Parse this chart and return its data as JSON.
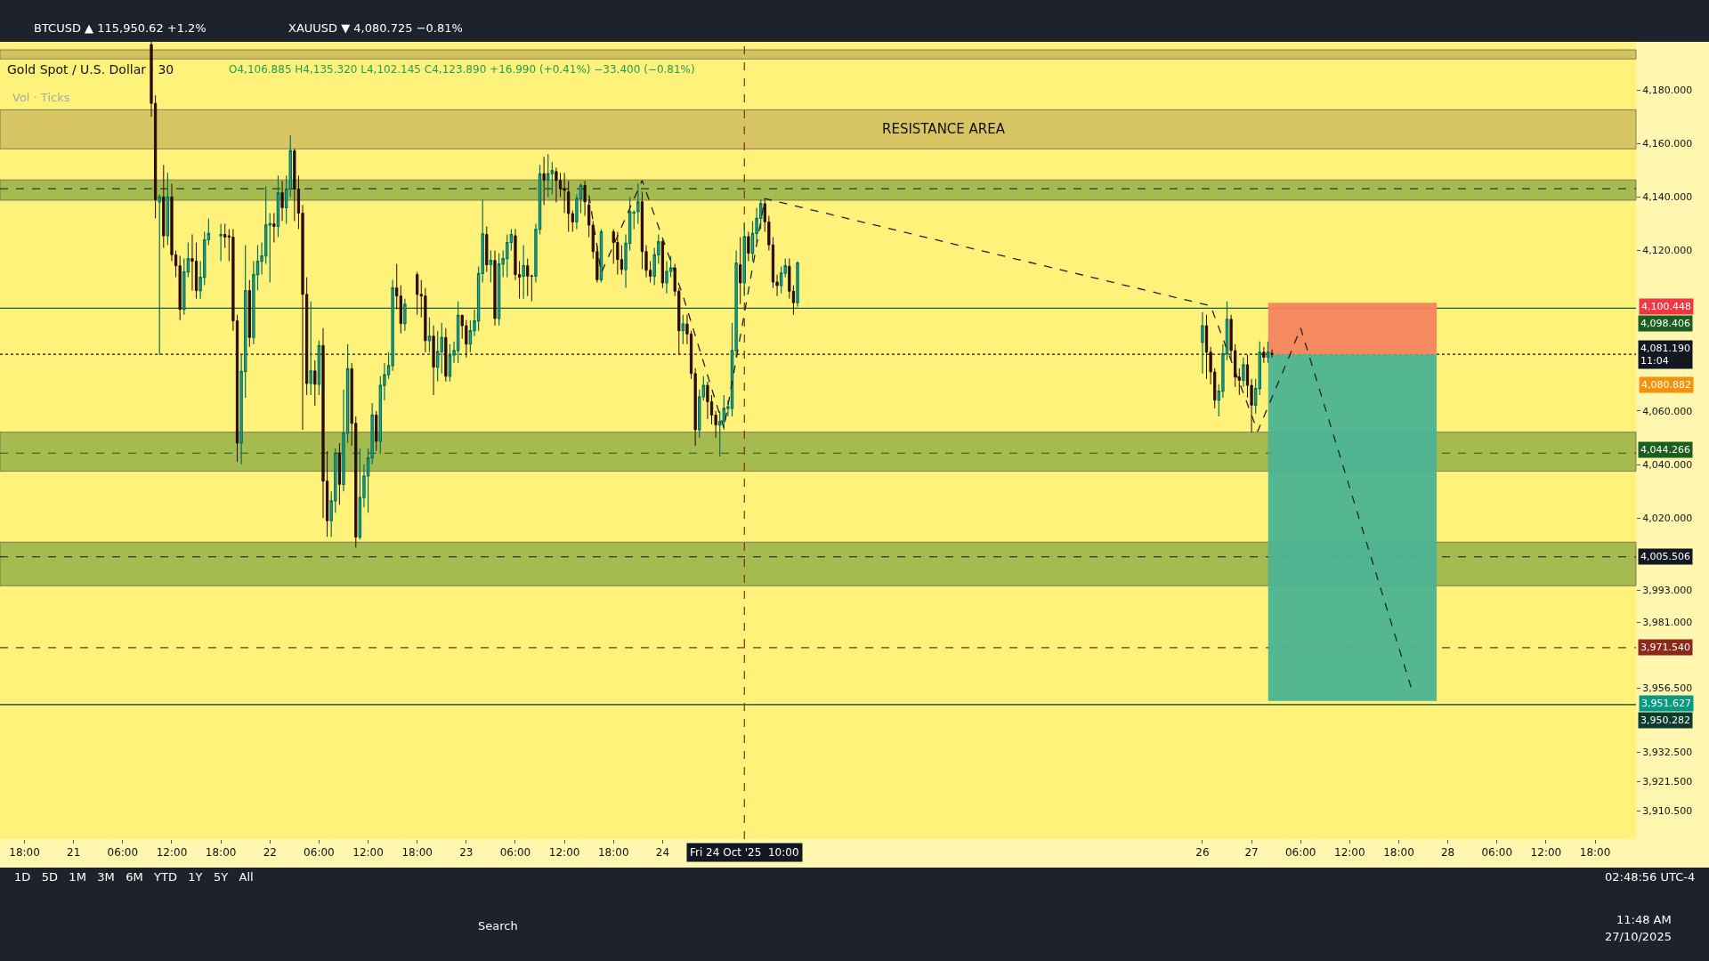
{
  "chart_data": {
    "type": "candlestick",
    "title": "Gold Spot / U.S. Dollar · 30",
    "subtitle": "O4,106.885 H4,135.320 L4,102.145 C4,123.890 +16.990 (+0.41%) −33.400 (−0.81%)",
    "x": [
      "2025-10-21T09:30",
      "2025-10-21T10:00",
      "2025-10-21T10:30",
      "2025-10-21T11:00",
      "2025-10-21T11:30",
      "2025-10-21T12:00",
      "2025-10-21T12:30",
      "2025-10-21T13:00",
      "2025-10-21T13:30",
      "2025-10-21T14:00",
      "2025-10-21T14:30",
      "2025-10-21T15:00",
      "2025-10-21T15:30",
      "2025-10-21T16:00",
      "2025-10-21T16:30",
      "2025-10-21T18:00",
      "2025-10-21T18:30",
      "2025-10-21T19:00",
      "2025-10-21T19:30",
      "2025-10-21T20:00",
      "2025-10-21T20:30",
      "2025-10-21T21:00",
      "2025-10-21T21:30",
      "2025-10-21T22:00",
      "2025-10-21T22:30",
      "2025-10-21T23:00",
      "2025-10-21T23:30",
      "2025-10-22T00:00",
      "2025-10-22T00:30",
      "2025-10-22T01:00",
      "2025-10-22T01:30",
      "2025-10-22T02:00",
      "2025-10-22T02:30",
      "2025-10-22T03:00",
      "2025-10-22T03:30",
      "2025-10-22T04:00",
      "2025-10-22T04:30",
      "2025-10-22T05:00",
      "2025-10-22T05:30",
      "2025-10-22T06:00",
      "2025-10-22T06:30",
      "2025-10-22T07:00",
      "2025-10-22T07:30",
      "2025-10-22T08:00",
      "2025-10-22T08:30",
      "2025-10-22T09:00",
      "2025-10-22T09:30",
      "2025-10-22T10:00",
      "2025-10-22T10:30",
      "2025-10-22T11:00",
      "2025-10-22T11:30",
      "2025-10-22T12:00",
      "2025-10-22T12:30",
      "2025-10-22T13:00",
      "2025-10-22T13:30",
      "2025-10-22T14:00",
      "2025-10-22T14:30",
      "2025-10-22T15:00",
      "2025-10-22T15:30",
      "2025-10-22T16:00",
      "2025-10-22T16:30",
      "2025-10-22T18:00",
      "2025-10-22T18:30",
      "2025-10-22T19:00",
      "2025-10-22T19:30",
      "2025-10-22T20:00",
      "2025-10-22T20:30",
      "2025-10-22T21:00",
      "2025-10-22T21:30",
      "2025-10-22T22:00",
      "2025-10-22T22:30",
      "2025-10-22T23:00",
      "2025-10-22T23:30",
      "2025-10-23T00:00",
      "2025-10-23T00:30",
      "2025-10-23T01:00",
      "2025-10-23T01:30",
      "2025-10-23T02:00",
      "2025-10-23T02:30",
      "2025-10-23T03:00",
      "2025-10-23T03:30",
      "2025-10-23T04:00",
      "2025-10-23T04:30",
      "2025-10-23T05:00",
      "2025-10-23T05:30",
      "2025-10-23T06:00",
      "2025-10-23T06:30",
      "2025-10-23T07:00",
      "2025-10-23T07:30",
      "2025-10-23T08:00",
      "2025-10-23T08:30",
      "2025-10-23T09:00",
      "2025-10-23T09:30",
      "2025-10-23T10:00",
      "2025-10-23T10:30",
      "2025-10-23T11:00",
      "2025-10-23T11:30",
      "2025-10-23T12:00",
      "2025-10-23T12:30",
      "2025-10-23T13:00",
      "2025-10-23T13:30",
      "2025-10-23T14:00",
      "2025-10-23T14:30",
      "2025-10-23T15:00",
      "2025-10-23T15:30",
      "2025-10-23T16:00",
      "2025-10-23T16:30",
      "2025-10-23T18:00",
      "2025-10-23T18:30",
      "2025-10-23T19:00",
      "2025-10-23T19:30",
      "2025-10-23T20:00",
      "2025-10-23T20:30",
      "2025-10-23T21:00",
      "2025-10-23T21:30",
      "2025-10-23T22:00",
      "2025-10-23T22:30",
      "2025-10-23T23:00",
      "2025-10-23T23:30",
      "2025-10-24T00:00",
      "2025-10-24T00:30",
      "2025-10-24T01:00",
      "2025-10-24T01:30",
      "2025-10-24T02:00",
      "2025-10-24T02:30",
      "2025-10-24T03:00",
      "2025-10-24T03:30",
      "2025-10-24T04:00",
      "2025-10-24T04:30",
      "2025-10-24T05:00",
      "2025-10-24T05:30",
      "2025-10-24T06:00",
      "2025-10-24T06:30",
      "2025-10-24T07:00",
      "2025-10-24T07:30",
      "2025-10-24T08:00",
      "2025-10-24T08:30",
      "2025-10-24T09:00",
      "2025-10-24T09:30",
      "2025-10-24T10:00",
      "2025-10-24T10:30",
      "2025-10-24T11:00",
      "2025-10-24T11:30",
      "2025-10-24T12:00",
      "2025-10-24T12:30",
      "2025-10-24T13:00",
      "2025-10-24T13:30",
      "2025-10-24T14:00",
      "2025-10-24T14:30",
      "2025-10-24T15:00",
      "2025-10-24T15:30",
      "2025-10-24T16:00",
      "2025-10-24T16:30",
      "2025-10-26T18:00",
      "2025-10-26T18:30",
      "2025-10-26T19:00",
      "2025-10-26T19:30",
      "2025-10-26T20:00",
      "2025-10-26T20:30",
      "2025-10-26T21:00",
      "2025-10-26T21:30",
      "2025-10-26T22:00",
      "2025-10-26T22:30",
      "2025-10-26T23:00",
      "2025-10-26T23:30",
      "2025-10-27T00:00",
      "2025-10-27T00:30",
      "2025-10-27T01:00",
      "2025-10-27T01:30",
      "2025-10-27T02:00",
      "2025-10-27T02:30"
    ],
    "ohlc": [
      [
        4197,
        4198,
        4170,
        4175
      ],
      [
        4175,
        4178,
        4132,
        4139
      ],
      [
        4138.2,
        4141,
        4081,
        4140
      ],
      [
        4140,
        4152,
        4121,
        4125.5
      ],
      [
        4125.5,
        4149,
        4122,
        4140
      ],
      [
        4140,
        4145,
        4116,
        4118.4
      ],
      [
        4118.4,
        4120,
        4110,
        4114.3
      ],
      [
        4114.3,
        4118,
        4094,
        4098
      ],
      [
        4098,
        4117,
        4096,
        4112
      ],
      [
        4112,
        4123,
        4110,
        4117
      ],
      [
        4117,
        4126,
        4105,
        4116
      ],
      [
        4116,
        4123,
        4102,
        4105
      ],
      [
        4105,
        4116,
        4102,
        4110
      ],
      [
        4110,
        4127,
        4107,
        4124
      ],
      [
        4124,
        4132,
        4122,
        4126.4
      ],
      [
        4125.5,
        4130,
        4116,
        4126
      ],
      [
        4126,
        4130,
        4121,
        4125
      ],
      [
        4125.5,
        4128,
        4116,
        4125
      ],
      [
        4125,
        4128,
        4090,
        4093.7
      ],
      [
        4093.7,
        4096,
        4041,
        4048
      ],
      [
        4048,
        4081,
        4040,
        4074.8
      ],
      [
        4074.8,
        4122,
        4065,
        4105
      ],
      [
        4105,
        4109,
        4084,
        4087.5
      ],
      [
        4087.5,
        4116,
        4085,
        4111
      ],
      [
        4111,
        4122,
        4105,
        4116
      ],
      [
        4116,
        4123,
        4111,
        4118
      ],
      [
        4118,
        4144,
        4115,
        4129.5
      ],
      [
        4129.5,
        4134,
        4108,
        4130
      ],
      [
        4130,
        4134,
        4123,
        4129
      ],
      [
        4129,
        4148,
        4125,
        4141.6
      ],
      [
        4141.6,
        4146,
        4131,
        4136
      ],
      [
        4136,
        4148,
        4130,
        4143
      ],
      [
        4143,
        4163,
        4140,
        4157.3
      ],
      [
        4157.3,
        4158,
        4131,
        4143
      ],
      [
        4143,
        4148,
        4128,
        4134
      ],
      [
        4134,
        4137,
        4053,
        4103.6
      ],
      [
        4103.6,
        4110,
        4066,
        4070.3
      ],
      [
        4070.3,
        4101,
        4066,
        4075
      ],
      [
        4075,
        4079,
        4062,
        4070
      ],
      [
        4070,
        4086.3,
        4066,
        4084.5
      ],
      [
        4084.5,
        4091,
        4020,
        4033.8
      ],
      [
        4033.8,
        4045,
        4013,
        4019
      ],
      [
        4019,
        4030,
        4013,
        4026.4
      ],
      [
        4026.4,
        4046,
        4022,
        4044.3
      ],
      [
        4044.3,
        4048,
        4025,
        4032.6
      ],
      [
        4032.6,
        4068,
        4030,
        4051.7
      ],
      [
        4051.7,
        4085,
        4048,
        4075.8
      ],
      [
        4075.8,
        4078,
        4047,
        4055.4
      ],
      [
        4055.4,
        4058,
        4009,
        4012.9
      ],
      [
        4012.9,
        4046,
        4012,
        4027.7
      ],
      [
        4027.7,
        4040,
        4024,
        4035.7
      ],
      [
        4035.7,
        4046,
        4022,
        4042.5
      ],
      [
        4042.5,
        4063,
        4040,
        4058.5
      ],
      [
        4058.5,
        4060,
        4045,
        4048.7
      ],
      [
        4048.7,
        4073,
        4044,
        4069.6
      ],
      [
        4069.6,
        4078,
        4064,
        4073.6
      ],
      [
        4073.6,
        4082,
        4072,
        4077
      ],
      [
        4077,
        4109,
        4075,
        4106
      ],
      [
        4106,
        4115,
        4098,
        4103
      ],
      [
        4103,
        4107,
        4089,
        4092.7
      ],
      [
        4092.7,
        4102,
        4090,
        4099.9
      ],
      [
        4111,
        4112,
        4096,
        4103.6
      ],
      [
        4103.6,
        4109,
        4095,
        4103
      ],
      [
        4103,
        4106,
        4082,
        4086.3
      ],
      [
        4086.3,
        4095,
        4082,
        4088
      ],
      [
        4088,
        4092,
        4066,
        4076.4
      ],
      [
        4076.4,
        4090,
        4071,
        4082.2
      ],
      [
        4082.2,
        4093,
        4074,
        4087.5
      ],
      [
        4087.5,
        4091,
        4071,
        4073
      ],
      [
        4073,
        4085,
        4071,
        4081
      ],
      [
        4081,
        4086,
        4078,
        4082.6
      ],
      [
        4082.6,
        4101,
        4078,
        4095.8
      ],
      [
        4095.8,
        4096,
        4087,
        4091.9
      ],
      [
        4091.9,
        4094,
        4080,
        4085
      ],
      [
        4085,
        4094,
        4082,
        4090
      ],
      [
        4090,
        4098,
        4088,
        4093.7
      ],
      [
        4093.7,
        4114,
        4090,
        4111.4
      ],
      [
        4111.4,
        4139,
        4108,
        4126.2
      ],
      [
        4126,
        4129,
        4112,
        4114.7
      ],
      [
        4114.7,
        4120,
        4108,
        4116.3
      ],
      [
        4116.3,
        4120,
        4092,
        4094.6
      ],
      [
        4094.6,
        4119,
        4092,
        4115
      ],
      [
        4115,
        4120,
        4110,
        4117
      ],
      [
        4117,
        4126,
        4110,
        4123
      ],
      [
        4123,
        4128,
        4120,
        4126
      ],
      [
        4125.5,
        4128,
        4109,
        4111
      ],
      [
        4111,
        4116,
        4102,
        4110
      ],
      [
        4110.4,
        4122,
        4102,
        4114.3
      ],
      [
        4114.3,
        4117,
        4103,
        4110.4
      ],
      [
        4110.5,
        4111,
        4101,
        4110.4
      ],
      [
        4110.4,
        4130,
        4108,
        4127.9
      ],
      [
        4127.9,
        4152,
        4126,
        4148.7
      ],
      [
        4148.7,
        4155,
        4137,
        4146.4
      ],
      [
        4146.4,
        4156,
        4140,
        4148.7
      ],
      [
        4148.7,
        4153,
        4141,
        4149.9
      ],
      [
        4149.5,
        4151,
        4138,
        4146.2
      ],
      [
        4146.2,
        4149,
        4140,
        4143.1
      ],
      [
        4143.1,
        4149,
        4134,
        4142.5
      ],
      [
        4141.9,
        4146,
        4127,
        4133.8
      ],
      [
        4133.8,
        4135,
        4127,
        4130.7
      ],
      [
        4130.7,
        4141,
        4128,
        4139.4
      ],
      [
        4139.4,
        4145,
        4134,
        4144.3
      ],
      [
        4144.3,
        4146,
        4133,
        4138.2
      ],
      [
        4137,
        4139,
        4125,
        4129.5
      ],
      [
        4129.5,
        4131,
        4117,
        4119.6
      ],
      [
        4119.6,
        4122,
        4108,
        4109.1
      ],
      [
        4109.1,
        4128,
        4108,
        4127
      ],
      [
        4127,
        4128,
        4115,
        4123
      ],
      [
        4123,
        4127,
        4111,
        4116.6
      ],
      [
        4116.6,
        4122,
        4111,
        4112.9
      ],
      [
        4112.9,
        4126,
        4106,
        4122.7
      ],
      [
        4122.7,
        4140,
        4120,
        4134.5
      ],
      [
        4134,
        4135,
        4128,
        4134.2
      ],
      [
        4134.5,
        4145,
        4130,
        4138.2
      ],
      [
        4138.2,
        4142,
        4113,
        4119.6
      ],
      [
        4119.6,
        4122,
        4110,
        4112.6
      ],
      [
        4112.6,
        4116,
        4108,
        4110.4
      ],
      [
        4110.4,
        4121,
        4107,
        4118.4
      ],
      [
        4118.4,
        4126,
        4115,
        4123.3
      ],
      [
        4123.3,
        4124,
        4106,
        4107.9
      ],
      [
        4107.9,
        4116,
        4104,
        4112.2
      ],
      [
        4112.2,
        4118,
        4110,
        4113.5
      ],
      [
        4113.5,
        4115,
        4103,
        4104.8
      ],
      [
        4104.8,
        4106,
        4081,
        4090
      ],
      [
        4090,
        4096,
        4085,
        4092.5
      ],
      [
        4092.5,
        4096,
        4085,
        4088.8
      ],
      [
        4088.8,
        4090,
        4072,
        4074
      ],
      [
        4074,
        4076,
        4047,
        4053
      ],
      [
        4053,
        4068,
        4050,
        4065.3
      ],
      [
        4065.3,
        4073,
        4064,
        4069.6
      ],
      [
        4069.6,
        4071,
        4057,
        4063.5
      ],
      [
        4063.5,
        4066,
        4055,
        4058.5
      ],
      [
        4058.5,
        4060,
        4050,
        4054.8
      ],
      [
        4054.8,
        4060,
        4043,
        4056
      ],
      [
        4056,
        4066,
        4053,
        4061
      ],
      [
        4061,
        4064,
        4058,
        4061.6
      ],
      [
        4061,
        4093,
        4058,
        4082.6
      ],
      [
        4082.6,
        4120,
        4080,
        4115.3
      ],
      [
        4114.7,
        4125,
        4100,
        4107.9
      ],
      [
        4107.9,
        4130,
        4103,
        4125.2
      ],
      [
        4125.2,
        4127,
        4116,
        4119
      ],
      [
        4119,
        4131,
        4116,
        4126.4
      ],
      [
        4126.4,
        4136,
        4123,
        4132
      ],
      [
        4132,
        4139,
        4128,
        4137.5
      ],
      [
        4137.5,
        4139,
        4127,
        4130.7
      ],
      [
        4130.7,
        4133,
        4120,
        4122.1
      ],
      [
        4122.1,
        4125,
        4106,
        4108.2
      ],
      [
        4108.2,
        4111,
        4103,
        4106.9
      ],
      [
        4106.9,
        4114,
        4104,
        4111.6
      ],
      [
        4111.6,
        4117,
        4110,
        4114.3
      ],
      [
        4114.1,
        4117,
        4102,
        4104.8
      ],
      [
        4104.8,
        4107,
        4096,
        4100.5
      ],
      [
        4100.5,
        4116,
        4099,
        4115.3
      ],
      [
        4085.7,
        4097,
        4074,
        4091.9
      ],
      [
        4091.9,
        4096,
        4072,
        4082
      ],
      [
        4082,
        4084,
        4070,
        4074.6
      ],
      [
        4074.6,
        4076,
        4061,
        4064.1
      ],
      [
        4064.1,
        4070,
        4058,
        4067.4
      ],
      [
        4067.4,
        4085,
        4065,
        4081.4
      ],
      [
        4081.4,
        4101,
        4079,
        4094.3
      ],
      [
        4094.3,
        4096,
        4079,
        4082.6
      ],
      [
        4082.6,
        4085,
        4069,
        4072.7
      ],
      [
        4072.7,
        4076,
        4066,
        4071.5
      ],
      [
        4071.5,
        4080,
        4069,
        4077.3
      ],
      [
        4077.3,
        4081,
        4065,
        4069.6
      ],
      [
        4069.6,
        4072,
        4052,
        4062.2
      ],
      [
        4062.2,
        4072,
        4059,
        4068.4
      ],
      [
        4068.4,
        4086,
        4066,
        4082
      ],
      [
        4082,
        4084,
        4078,
        4080.1
      ],
      [
        4080.1,
        4086,
        4078,
        4082
      ],
      [
        4081.6,
        4083,
        4080,
        4081.2
      ]
    ],
    "series": [
      {
        "type": "bar",
        "x": [
          "2025-10-27T12:20"
        ],
        "values": [
          19.258
        ],
        "base": [
          4081.19
        ],
        "color": "#f4845f"
      },
      {
        "type": "bar",
        "x": [
          "2025-10-27T12:20"
        ],
        "values": [
          129.563
        ],
        "base": [
          3951.627
        ],
        "color": "#4cb394"
      },
      {
        "type": "line",
        "x": [
          "2025-10-23T15:00",
          "2025-10-23T16:30",
          "2025-10-23T21:30",
          "2025-10-24T02:30",
          "2025-10-24T07:30",
          "2025-10-24T12:30",
          "2025-10-26T19:00",
          "2025-10-27T00:45",
          "2025-10-27T04:45",
          "2025-10-27T06:00",
          "2025-10-27T19:30"
        ],
        "values": [
          4140.6,
          4111.6,
          4146.2,
          4103.0,
          4053.6,
          4139.4,
          4099.3,
          4052.4,
          4081.4,
          4091,
          3956.7
        ],
        "color": "#222222"
      }
    ],
    "line_style": "dashed",
    "xlim": [
      "2025-10-20T15:00",
      "2025-10-28T23:00"
    ],
    "xticks": [
      {
        "value": "2025-10-20T18:00",
        "label": "18:00"
      },
      {
        "value": "2025-10-21T00:00",
        "label": "21"
      },
      {
        "value": "2025-10-21T06:00",
        "label": "06:00"
      },
      {
        "value": "2025-10-21T12:00",
        "label": "12:00"
      },
      {
        "value": "2025-10-21T18:00",
        "label": "18:00"
      },
      {
        "value": "2025-10-22T00:00",
        "label": "22"
      },
      {
        "value": "2025-10-22T06:00",
        "label": "06:00"
      },
      {
        "value": "2025-10-22T12:00",
        "label": "12:00"
      },
      {
        "value": "2025-10-22T18:00",
        "label": "18:00"
      },
      {
        "value": "2025-10-23T00:00",
        "label": "23"
      },
      {
        "value": "2025-10-23T06:00",
        "label": "06:00"
      },
      {
        "value": "2025-10-23T12:00",
        "label": "12:00"
      },
      {
        "value": "2025-10-23T18:00",
        "label": "18:00"
      },
      {
        "value": "2025-10-24T00:00",
        "label": "24"
      },
      {
        "value": "2025-10-26T18:00",
        "label": "26"
      },
      {
        "value": "2025-10-27T00:00",
        "label": "27"
      },
      {
        "value": "2025-10-27T06:00",
        "label": "06:00"
      },
      {
        "value": "2025-10-27T12:00",
        "label": "12:00"
      },
      {
        "value": "2025-10-27T18:00",
        "label": "18:00"
      },
      {
        "value": "2025-10-28T00:00",
        "label": "28"
      },
      {
        "value": "2025-10-28T06:00",
        "label": "06:00"
      },
      {
        "value": "2025-10-28T12:00",
        "label": "12:00"
      },
      {
        "value": "2025-10-28T18:00",
        "label": "18:00"
      }
    ],
    "ylim": [
      3900,
      4198
    ],
    "yticks": [
      {
        "value": 4180,
        "label": "4,180.000"
      },
      {
        "value": 4160,
        "label": "4,160.000"
      },
      {
        "value": 4140,
        "label": "4,140.000"
      },
      {
        "value": 4120,
        "label": "4,120.000"
      },
      {
        "value": 4060,
        "label": "4,060.000"
      },
      {
        "value": 4040,
        "label": "4,040.000"
      },
      {
        "value": 4020,
        "label": "4,020.000"
      },
      {
        "value": 3993,
        "label": "3,993.000"
      },
      {
        "value": 3981,
        "label": "3,981.000"
      },
      {
        "value": 3956.5,
        "label": "3,956.500"
      },
      {
        "value": 3932.5,
        "label": "3,932.500"
      },
      {
        "value": 3921.5,
        "label": "3,921.500"
      },
      {
        "value": 3910.5,
        "label": "3,910.500"
      }
    ],
    "bands": [
      {
        "axis": "y",
        "from": 4191.6,
        "to": 4195,
        "color": "#c9b95c"
      },
      {
        "axis": "y",
        "from": 4158,
        "to": 4172.6,
        "label": "RESISTANCE AREA",
        "color": "#cdbb5d"
      },
      {
        "axis": "y",
        "from": 4138.8,
        "to": 4146.4,
        "color": "#8fae45"
      },
      {
        "axis": "y",
        "from": 4037.5,
        "to": 4052.1,
        "color": "#8fae45"
      },
      {
        "axis": "y",
        "from": 3994.7,
        "to": 4011,
        "color": "#8fae45"
      }
    ],
    "ref_lines": [
      {
        "axis": "y",
        "value": 4143.1,
        "color": "#333333",
        "line_style": "dashed"
      },
      {
        "axis": "y",
        "value": 4098.406,
        "label": "4,098.406",
        "color": "#1b5e20",
        "line_style": "solid"
      },
      {
        "axis": "y",
        "value": 4081.19,
        "label": "4,081.190\n11:04",
        "color": "#131722",
        "line_style": "dotted"
      },
      {
        "axis": "y",
        "value": 4044.266,
        "label": "4,044.266",
        "color": "#1b5e20",
        "line_style": "dashed"
      },
      {
        "axis": "y",
        "value": 4005.506,
        "label": "4,005.506",
        "color": "#131722",
        "line_style": "dashed"
      },
      {
        "axis": "y",
        "value": 3971.54,
        "label": "3,971.540",
        "color": "#8b2a1a",
        "line_style": "dashed"
      },
      {
        "axis": "y",
        "value": 3950.282,
        "label": "3,950.282",
        "color": "#0d3b2e",
        "line_style": "solid"
      },
      {
        "axis": "x",
        "value": "2025-10-24T10:00",
        "label": "Fri 24 Oct '25  10:00",
        "color": "#8b2a1a",
        "line_style": "dashed"
      }
    ],
    "annotations": [
      "BTCUSD ▲ 115,950.62 +1.2%",
      "XAUUSD ▼ 4,080.725 −0.81%",
      "Vol · Ticks",
      "1D   5D   1M   3M   6M   YTD   1Y   5Y   All",
      "02:48:56 UTC-4",
      "Search",
      "11:48 AM",
      "27/10/2025",
      "4,100.448",
      "4,080.882",
      "3,951.627"
    ]
  }
}
